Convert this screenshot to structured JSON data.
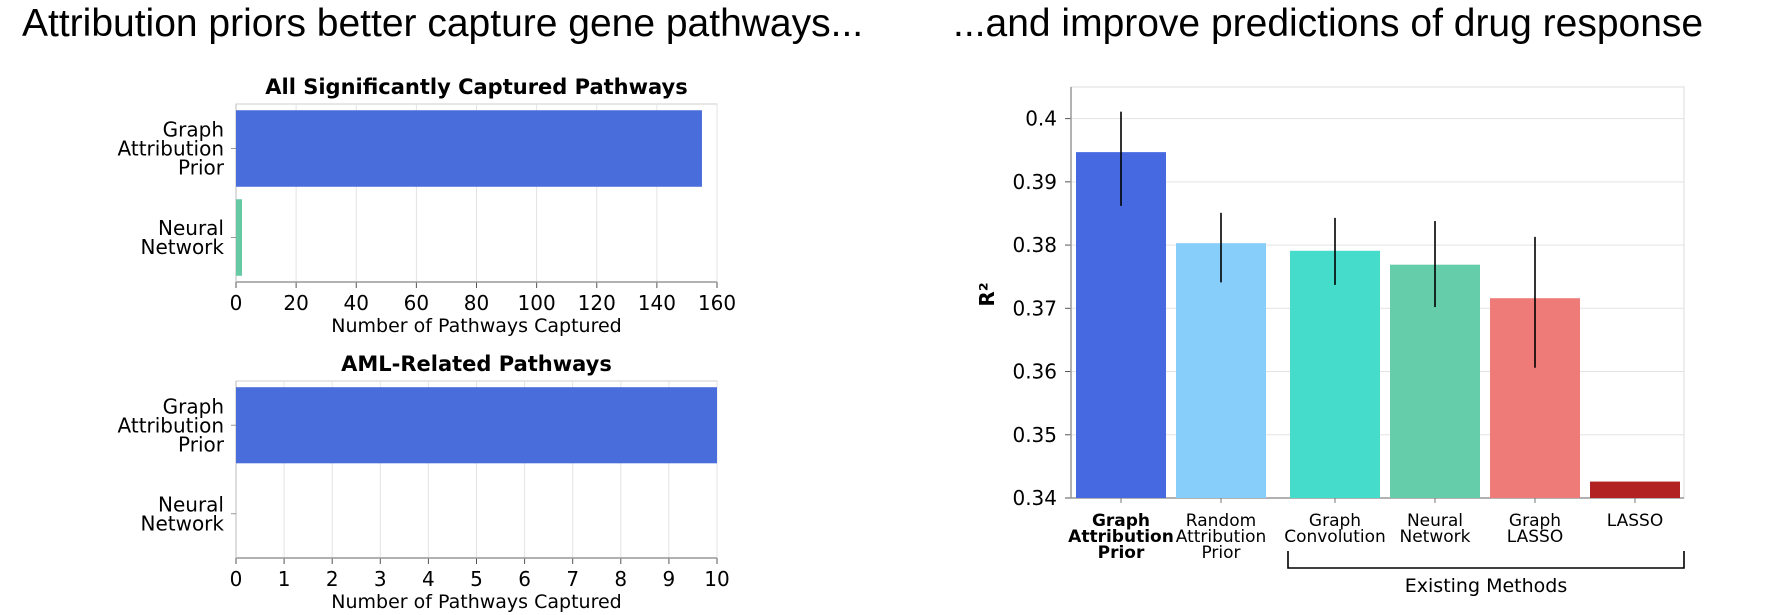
{
  "headline_left": "Attribution priors better capture gene pathways...",
  "headline_right": "...and improve predictions of drug response",
  "chart_data": [
    {
      "type": "bar",
      "orientation": "horizontal",
      "title": "All Significantly Captured Pathways",
      "categories": [
        [
          "Graph",
          "Attribution",
          "Prior"
        ],
        [
          "Neural",
          "Network"
        ]
      ],
      "values": [
        155,
        2
      ],
      "colors": [
        "#4A6DDC",
        "#66C9A3"
      ],
      "xlabel": "Number of Pathways Captured",
      "xlim": [
        0,
        160
      ],
      "xticks": [
        0,
        20,
        40,
        60,
        80,
        100,
        120,
        140,
        160
      ],
      "grid": true
    },
    {
      "type": "bar",
      "orientation": "horizontal",
      "title": "AML-Related Pathways",
      "categories": [
        [
          "Graph",
          "Attribution",
          "Prior"
        ],
        [
          "Neural",
          "Network"
        ]
      ],
      "values": [
        10,
        0
      ],
      "colors": [
        "#4A6DDC",
        "#66C9A3"
      ],
      "xlabel": "Number of Pathways Captured",
      "xlim": [
        0,
        10
      ],
      "xticks": [
        0,
        1,
        2,
        3,
        4,
        5,
        6,
        7,
        8,
        9,
        10
      ],
      "grid": true
    },
    {
      "type": "bar",
      "orientation": "vertical",
      "title": "",
      "ylabel": "R²",
      "ylim": [
        0.34,
        0.405
      ],
      "yticks": [
        0.34,
        0.35,
        0.36,
        0.37,
        0.38,
        0.39,
        0.4
      ],
      "categories": [
        [
          "Graph",
          "Attribution",
          "Prior"
        ],
        [
          "Random",
          "Attribution",
          "Prior"
        ],
        [
          "Graph",
          "Convolution"
        ],
        [
          "Neural",
          "Network"
        ],
        [
          "Graph",
          "LASSO"
        ],
        [
          "LASSO"
        ]
      ],
      "bold_category": 0,
      "values": [
        0.3947,
        0.3803,
        0.3791,
        0.3769,
        0.3716,
        0.3426
      ],
      "error_low": [
        0.3862,
        0.3741,
        0.3737,
        0.3702,
        0.3606,
        null
      ],
      "error_high": [
        0.4011,
        0.3851,
        0.3843,
        0.3838,
        0.3813,
        null
      ],
      "colors": [
        "#4669E1",
        "#87CEFA",
        "#46DCCC",
        "#66CDAA",
        "#EF7B79",
        "#B22222"
      ],
      "group_bracket": {
        "label": "Existing Methods",
        "from": 2,
        "to": 5
      },
      "grid": true
    }
  ]
}
